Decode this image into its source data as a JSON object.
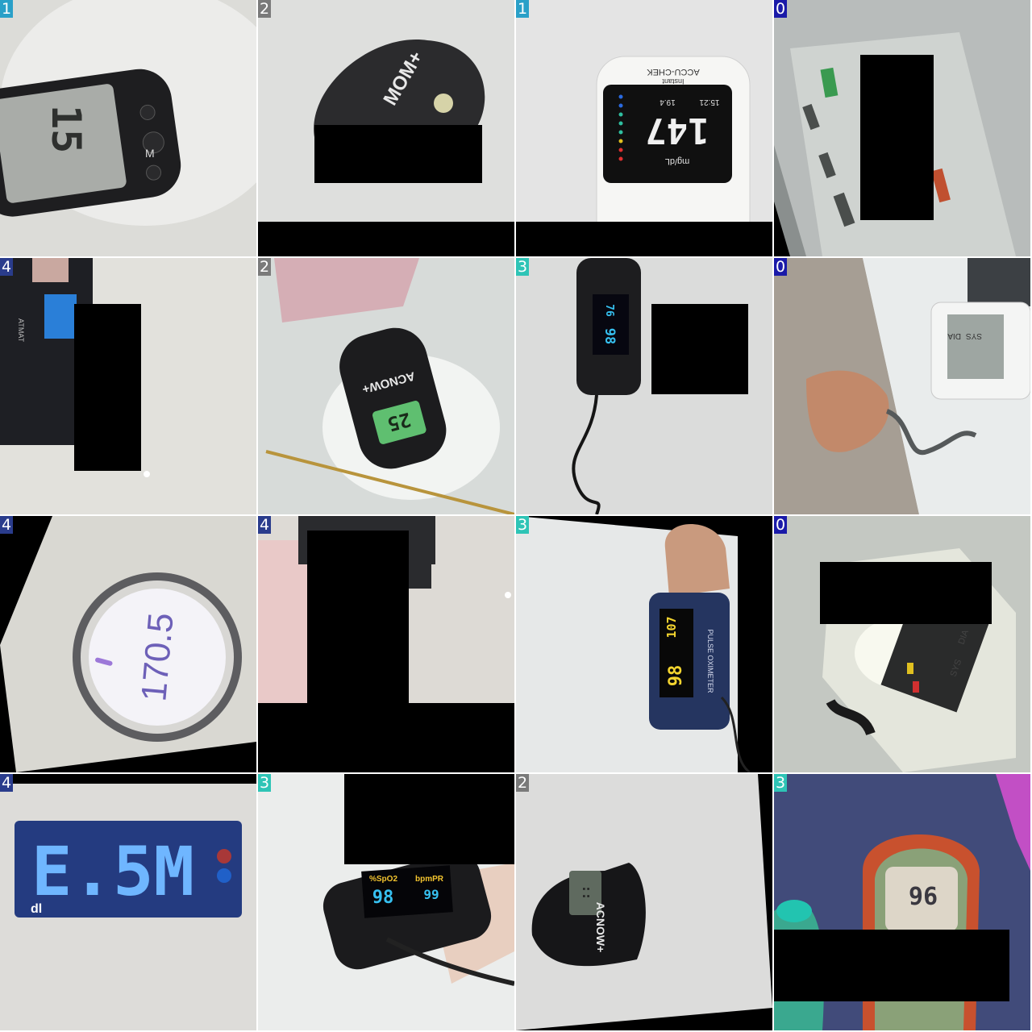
{
  "badge_colors": {
    "0": "#1a1aa8",
    "1": "#2aa0c8",
    "2": "#7a7a7a",
    "3": "#2ec4b6",
    "4": "#2a3c8c"
  },
  "tiles": [
    {
      "label": "1",
      "device": "glucose meter",
      "readings": [
        "15",
        "M"
      ]
    },
    {
      "label": "2",
      "device": "pulse oximeter",
      "readings": [
        "MOM+"
      ]
    },
    {
      "label": "1",
      "device": "glucose meter",
      "readings": [
        "ACCU-CHEK",
        "Instant",
        "147",
        "mg/dL",
        "15:21",
        "19.4"
      ]
    },
    {
      "label": "0",
      "device": "blood pressure monitor",
      "readings": []
    },
    {
      "label": "4",
      "device": "weighing scale",
      "readings": [
        "ATMAT"
      ]
    },
    {
      "label": "2",
      "device": "pulse oximeter",
      "readings": [
        "ACNOW+",
        "25"
      ]
    },
    {
      "label": "3",
      "device": "pulse oximeter",
      "readings": [
        "98",
        "76"
      ]
    },
    {
      "label": "0",
      "device": "blood pressure monitor",
      "readings": [
        "SYS",
        "DIA"
      ]
    },
    {
      "label": "4",
      "device": "weighing scale",
      "readings": [
        "170.5"
      ]
    },
    {
      "label": "4",
      "device": "weighing scale",
      "readings": []
    },
    {
      "label": "3",
      "device": "pulse oximeter",
      "readings": [
        "98",
        "107",
        "PULSE OXIMETER"
      ]
    },
    {
      "label": "0",
      "device": "blood pressure monitor",
      "readings": [
        "SYS",
        "DIA"
      ]
    },
    {
      "label": "4",
      "device": "weighing scale",
      "readings": [
        "E.5M",
        "dl"
      ]
    },
    {
      "label": "3",
      "device": "pulse oximeter",
      "readings": [
        "%SpO2",
        "bpmPR",
        "98",
        "99"
      ]
    },
    {
      "label": "2",
      "device": "pulse oximeter",
      "readings": [
        "ACNOW+"
      ]
    },
    {
      "label": "3",
      "device": "pulse oximeter",
      "readings": [
        "96"
      ]
    }
  ]
}
